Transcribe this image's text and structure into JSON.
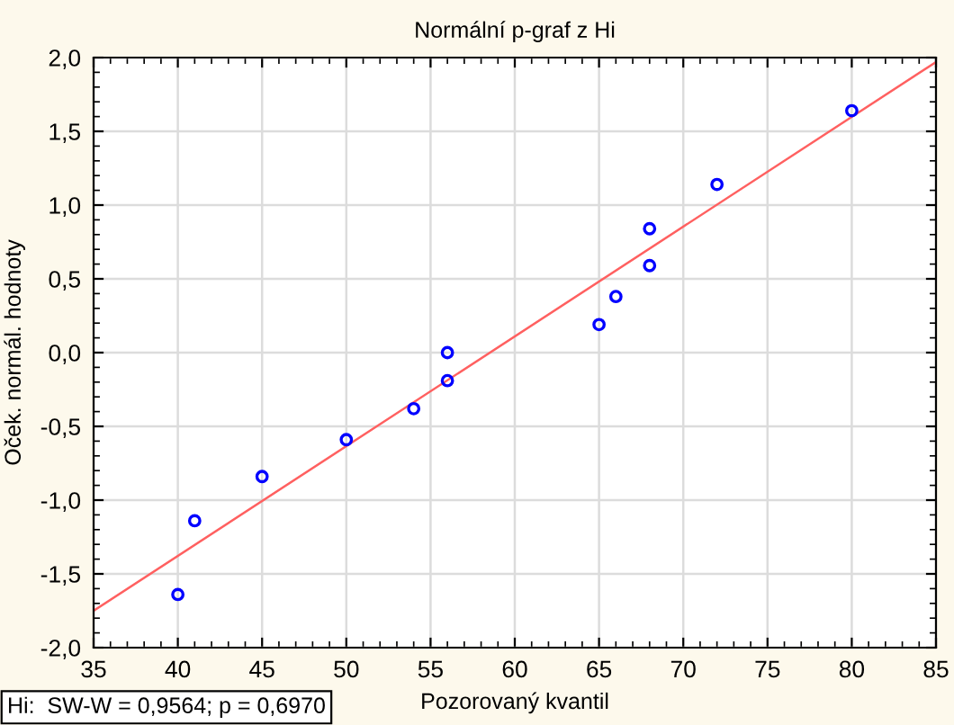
{
  "chart_data": {
    "type": "scatter",
    "title": "Normální p-graf z Hi",
    "xlabel": "Pozorovaný kvantil",
    "ylabel": "Oček. normál. hodnoty",
    "annotations": [
      "Hi:  SW-W = 0,9564; p = 0,6970"
    ],
    "series": [
      {
        "color": "#0000ff",
        "marker": "circle",
        "x": [
          40,
          41,
          45,
          50,
          54,
          56,
          56,
          65,
          66,
          68,
          68,
          72,
          80
        ],
        "values": [
          -1.64,
          -1.14,
          -0.84,
          -0.59,
          -0.38,
          -0.19,
          0.0,
          0.19,
          0.38,
          0.59,
          0.84,
          1.14,
          1.64
        ]
      },
      {
        "type": "line",
        "color": "#ff6060",
        "line_style": "solid",
        "x": [
          35,
          85
        ],
        "values": [
          -1.75,
          1.97
        ]
      }
    ],
    "xlim": [
      35,
      85
    ],
    "xticks": [
      35,
      40,
      45,
      50,
      55,
      60,
      65,
      70,
      75,
      80,
      85
    ],
    "ylim": [
      -2.0,
      2.0
    ],
    "yticks": [
      {
        "value": -2.0,
        "label": "-2,0"
      },
      {
        "value": -1.5,
        "label": "-1,5"
      },
      {
        "value": -1.0,
        "label": "-1,0"
      },
      {
        "value": -0.5,
        "label": "-0,5"
      },
      {
        "value": 0.0,
        "label": "0,0"
      },
      {
        "value": 0.5,
        "label": "0,5"
      },
      {
        "value": 1.0,
        "label": "1,0"
      },
      {
        "value": 1.5,
        "label": "1,5"
      },
      {
        "value": 2.0,
        "label": "2,0"
      }
    ],
    "grid": true
  }
}
